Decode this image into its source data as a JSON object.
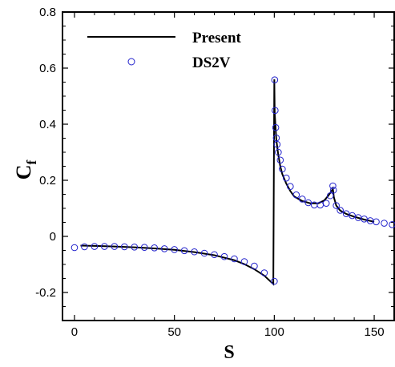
{
  "chart_data": {
    "type": "line",
    "xlabel": "S",
    "ylabel": "C",
    "ylabel_subscript": "f",
    "xlim": [
      -6,
      160
    ],
    "ylim": [
      -0.3,
      0.8
    ],
    "xticks": [
      0,
      50,
      100,
      150
    ],
    "xtick_labels": [
      "0",
      "50",
      "100",
      "150"
    ],
    "yticks": [
      -0.2,
      0,
      0.2,
      0.4,
      0.6,
      0.8
    ],
    "ytick_labels": [
      "-0.2",
      "0",
      "0.2",
      "0.4",
      "0.6",
      "0.8"
    ],
    "grid": false,
    "legend_position": "top-left",
    "colors": {
      "present": "#000000",
      "ds2v": "#2222cc"
    },
    "series": [
      {
        "name": "Present",
        "style": "line",
        "x": [
          3,
          10,
          20,
          30,
          40,
          50,
          60,
          70,
          80,
          85,
          90,
          95,
          99.5,
          100,
          100.2,
          101,
          102,
          103,
          104,
          106,
          108,
          110,
          114,
          118,
          122,
          125,
          127,
          128.5,
          129.3,
          129.8,
          131,
          133,
          136,
          140,
          145,
          150
        ],
        "y": [
          -0.033,
          -0.034,
          -0.036,
          -0.039,
          -0.043,
          -0.048,
          -0.056,
          -0.067,
          -0.085,
          -0.099,
          -0.117,
          -0.14,
          -0.17,
          0.56,
          0.44,
          0.345,
          0.29,
          0.25,
          0.222,
          0.188,
          0.162,
          0.142,
          0.126,
          0.118,
          0.118,
          0.128,
          0.145,
          0.16,
          0.17,
          0.14,
          0.11,
          0.092,
          0.08,
          0.07,
          0.06,
          0.052
        ]
      },
      {
        "name": "DS2V",
        "style": "markers",
        "x": [
          0,
          5,
          10,
          15,
          20,
          25,
          30,
          35,
          40,
          45,
          50,
          55,
          60,
          65,
          70,
          75,
          80,
          85,
          90,
          95,
          100,
          100.2,
          100.4,
          100.7,
          101,
          101.4,
          102,
          103,
          104,
          106,
          108,
          111,
          114,
          117,
          120,
          123,
          126,
          128,
          129.3,
          129.6,
          131,
          133,
          136,
          139,
          142,
          145,
          148,
          151,
          155,
          159
        ],
        "y": [
          -0.04,
          -0.037,
          -0.036,
          -0.036,
          -0.036,
          -0.037,
          -0.038,
          -0.039,
          -0.041,
          -0.044,
          -0.047,
          -0.051,
          -0.055,
          -0.06,
          -0.065,
          -0.072,
          -0.08,
          -0.09,
          -0.106,
          -0.13,
          -0.16,
          0.558,
          0.449,
          0.388,
          0.351,
          0.328,
          0.3,
          0.272,
          0.24,
          0.208,
          0.178,
          0.148,
          0.133,
          0.12,
          0.112,
          0.112,
          0.118,
          0.145,
          0.18,
          0.165,
          0.11,
          0.093,
          0.081,
          0.074,
          0.067,
          0.062,
          0.056,
          0.052,
          0.047,
          0.042
        ]
      }
    ]
  }
}
